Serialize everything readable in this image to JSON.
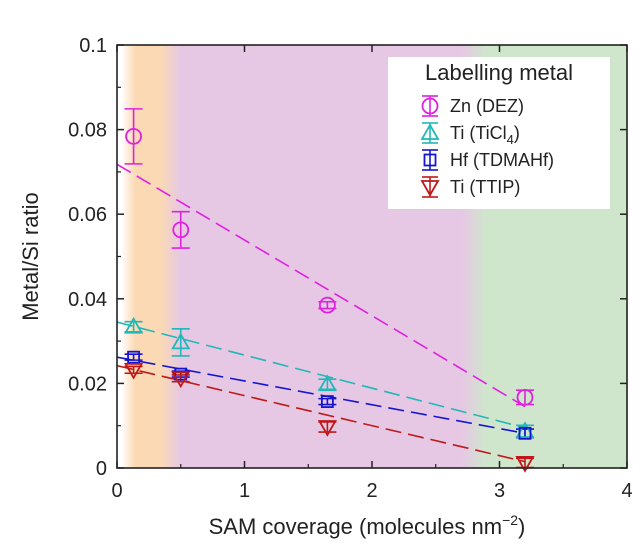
{
  "chart_data": {
    "type": "scatter",
    "title": "",
    "xlabel": "SAM coverage (molecules nm",
    "xlabel_sup": "−2",
    "xlabel_end": ")",
    "ylabel": "Metal/Si ratio",
    "xlim": [
      0,
      4
    ],
    "ylim": [
      0,
      0.1
    ],
    "x_ticks": [
      0,
      1,
      2,
      3,
      4
    ],
    "x_tick_labels": [
      "0",
      "1",
      "2",
      "3",
      "4"
    ],
    "y_ticks": [
      0,
      0.02,
      0.04,
      0.06,
      0.08,
      0.1
    ],
    "y_tick_labels": [
      "0",
      "0.02",
      "0.04",
      "0.06",
      "0.08",
      "0.1"
    ],
    "legend_title": "Labelling metal",
    "legend_position": "top-right",
    "background_regions": [
      {
        "name": "orange",
        "from": 0.08,
        "to": 0.42,
        "color": "#fbd9b4"
      },
      {
        "name": "purple",
        "from": 0.42,
        "to": 2.8,
        "color": "#e6c8e4"
      },
      {
        "name": "green",
        "from": 2.8,
        "to": 4.0,
        "color": "#cfe6cd"
      }
    ],
    "series": [
      {
        "name": "Zn (DEZ)",
        "name_main": "Zn (DEZ)",
        "name_sub": "",
        "name_end": "",
        "marker": "circle",
        "color": "#e020e0",
        "x": [
          0.13,
          0.5,
          1.65,
          3.2
        ],
        "y": [
          0.0784,
          0.0563,
          0.0385,
          0.0167
        ],
        "yerr": [
          0.0065,
          0.0043,
          0.0008,
          0.0017
        ],
        "fit": [
          [
            0.0,
            0.0718
          ],
          [
            3.2,
            0.0145
          ]
        ]
      },
      {
        "name": "Ti (TiCl4)",
        "name_main": "Ti (TiCl",
        "name_sub": "4",
        "name_end": ")",
        "marker": "triangle-up",
        "color": "#20b8b8",
        "x": [
          0.13,
          0.5,
          1.65,
          3.2
        ],
        "y": [
          0.0334,
          0.0297,
          0.0198,
          0.0087
        ],
        "yerr": [
          0.0012,
          0.0032,
          0.0012,
          0.0014
        ],
        "fit": [
          [
            0.0,
            0.0345
          ],
          [
            3.2,
            0.0095
          ]
        ]
      },
      {
        "name": "Hf (TDMAHf)",
        "name_main": "Hf (TDMAHf)",
        "name_sub": "",
        "name_end": "",
        "marker": "square",
        "color": "#1515d0",
        "x": [
          0.13,
          0.5,
          1.65,
          3.2
        ],
        "y": [
          0.0262,
          0.0222,
          0.0157,
          0.0082
        ],
        "yerr": [
          0.0007,
          0.0007,
          0.0007,
          0.001
        ],
        "fit": [
          [
            0.0,
            0.0262
          ],
          [
            3.2,
            0.0082
          ]
        ]
      },
      {
        "name": "Ti (TTIP)",
        "name_main": "Ti (TTIP)",
        "name_sub": "",
        "name_end": "",
        "marker": "triangle-down",
        "color": "#c01818",
        "x": [
          0.13,
          0.5,
          1.65,
          3.2
        ],
        "y": [
          0.0232,
          0.0212,
          0.0097,
          0.0012
        ],
        "yerr": [
          0.0008,
          0.0008,
          0.0012,
          0.0011
        ],
        "fit": [
          [
            0.0,
            0.0242
          ],
          [
            3.2,
            0.0015
          ]
        ]
      }
    ]
  }
}
